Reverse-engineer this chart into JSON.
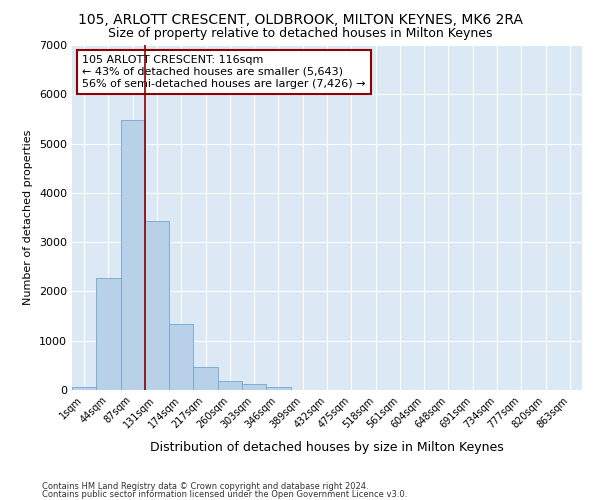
{
  "title1": "105, ARLOTT CRESCENT, OLDBROOK, MILTON KEYNES, MK6 2RA",
  "title2": "Size of property relative to detached houses in Milton Keynes",
  "xlabel": "Distribution of detached houses by size in Milton Keynes",
  "ylabel": "Number of detached properties",
  "categories": [
    "1sqm",
    "44sqm",
    "87sqm",
    "131sqm",
    "174sqm",
    "217sqm",
    "260sqm",
    "303sqm",
    "346sqm",
    "389sqm",
    "432sqm",
    "475sqm",
    "518sqm",
    "561sqm",
    "604sqm",
    "648sqm",
    "691sqm",
    "734sqm",
    "777sqm",
    "820sqm",
    "863sqm"
  ],
  "values": [
    60,
    2270,
    5470,
    3420,
    1340,
    460,
    175,
    115,
    60,
    5,
    0,
    0,
    0,
    0,
    0,
    0,
    0,
    0,
    0,
    0,
    0
  ],
  "bar_color": "#b8d0e8",
  "bar_edge_color": "#6fa8d0",
  "vline_color": "#8B0000",
  "annotation_text": "105 ARLOTT CRESCENT: 116sqm\n← 43% of detached houses are smaller (5,643)\n56% of semi-detached houses are larger (7,426) →",
  "annotation_box_color": "white",
  "annotation_box_edge": "#8B0000",
  "ylim": [
    0,
    7000
  ],
  "yticks": [
    0,
    1000,
    2000,
    3000,
    4000,
    5000,
    6000,
    7000
  ],
  "bg_color": "#dce9f5",
  "footer1": "Contains HM Land Registry data © Crown copyright and database right 2024.",
  "footer2": "Contains public sector information licensed under the Open Government Licence v3.0.",
  "title_fontsize": 10,
  "subtitle_fontsize": 9,
  "vline_pos": 2.5
}
